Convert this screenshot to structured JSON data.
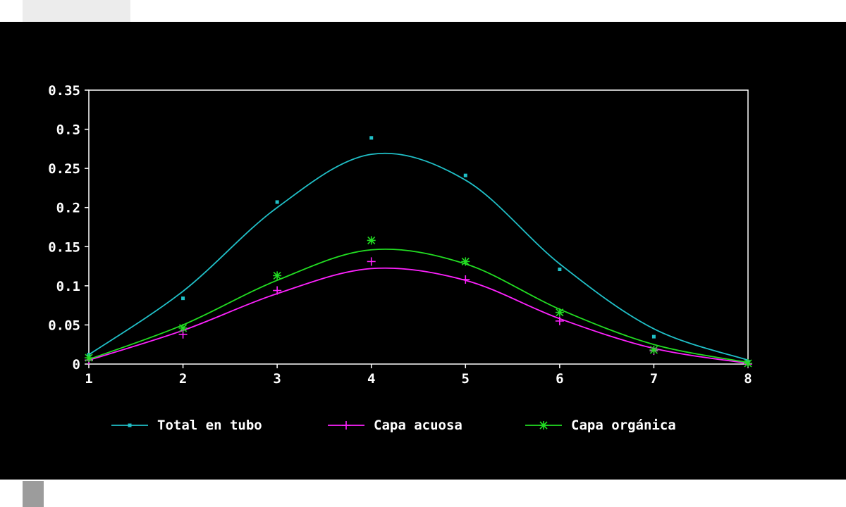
{
  "chart_data": {
    "type": "line",
    "title": "",
    "xlabel": "",
    "ylabel": "",
    "xlim": [
      1,
      8
    ],
    "ylim": [
      0,
      0.35
    ],
    "x_ticks": [
      "1",
      "2",
      "3",
      "4",
      "5",
      "6",
      "7",
      "8"
    ],
    "y_ticks": [
      "0",
      "0.05",
      "0.1",
      "0.15",
      "0.2",
      "0.25",
      "0.3",
      "0.35"
    ],
    "grid": false,
    "legend_position": "bottom",
    "series": [
      {
        "name": "Total en tubo",
        "color": "#20c0c8",
        "marker": "square",
        "points": [
          0.012,
          0.084,
          0.207,
          0.289,
          0.241,
          0.121,
          0.035,
          0.003
        ],
        "fit": [
          0.012,
          0.093,
          0.2,
          0.268,
          0.235,
          0.128,
          0.045,
          0.005
        ]
      },
      {
        "name": "Capa acuosa",
        "color": "#ff22ff",
        "marker": "plus",
        "points": [
          0.005,
          0.038,
          0.094,
          0.131,
          0.108,
          0.055,
          0.017,
          0.0
        ],
        "fit": [
          0.005,
          0.043,
          0.09,
          0.122,
          0.107,
          0.058,
          0.02,
          0.001
        ]
      },
      {
        "name": "Capa orgánica",
        "color": "#22dd22",
        "marker": "asterisk",
        "points": [
          0.008,
          0.046,
          0.113,
          0.158,
          0.131,
          0.066,
          0.018,
          0.001
        ],
        "fit": [
          0.006,
          0.05,
          0.107,
          0.146,
          0.128,
          0.07,
          0.025,
          0.002
        ]
      }
    ]
  }
}
